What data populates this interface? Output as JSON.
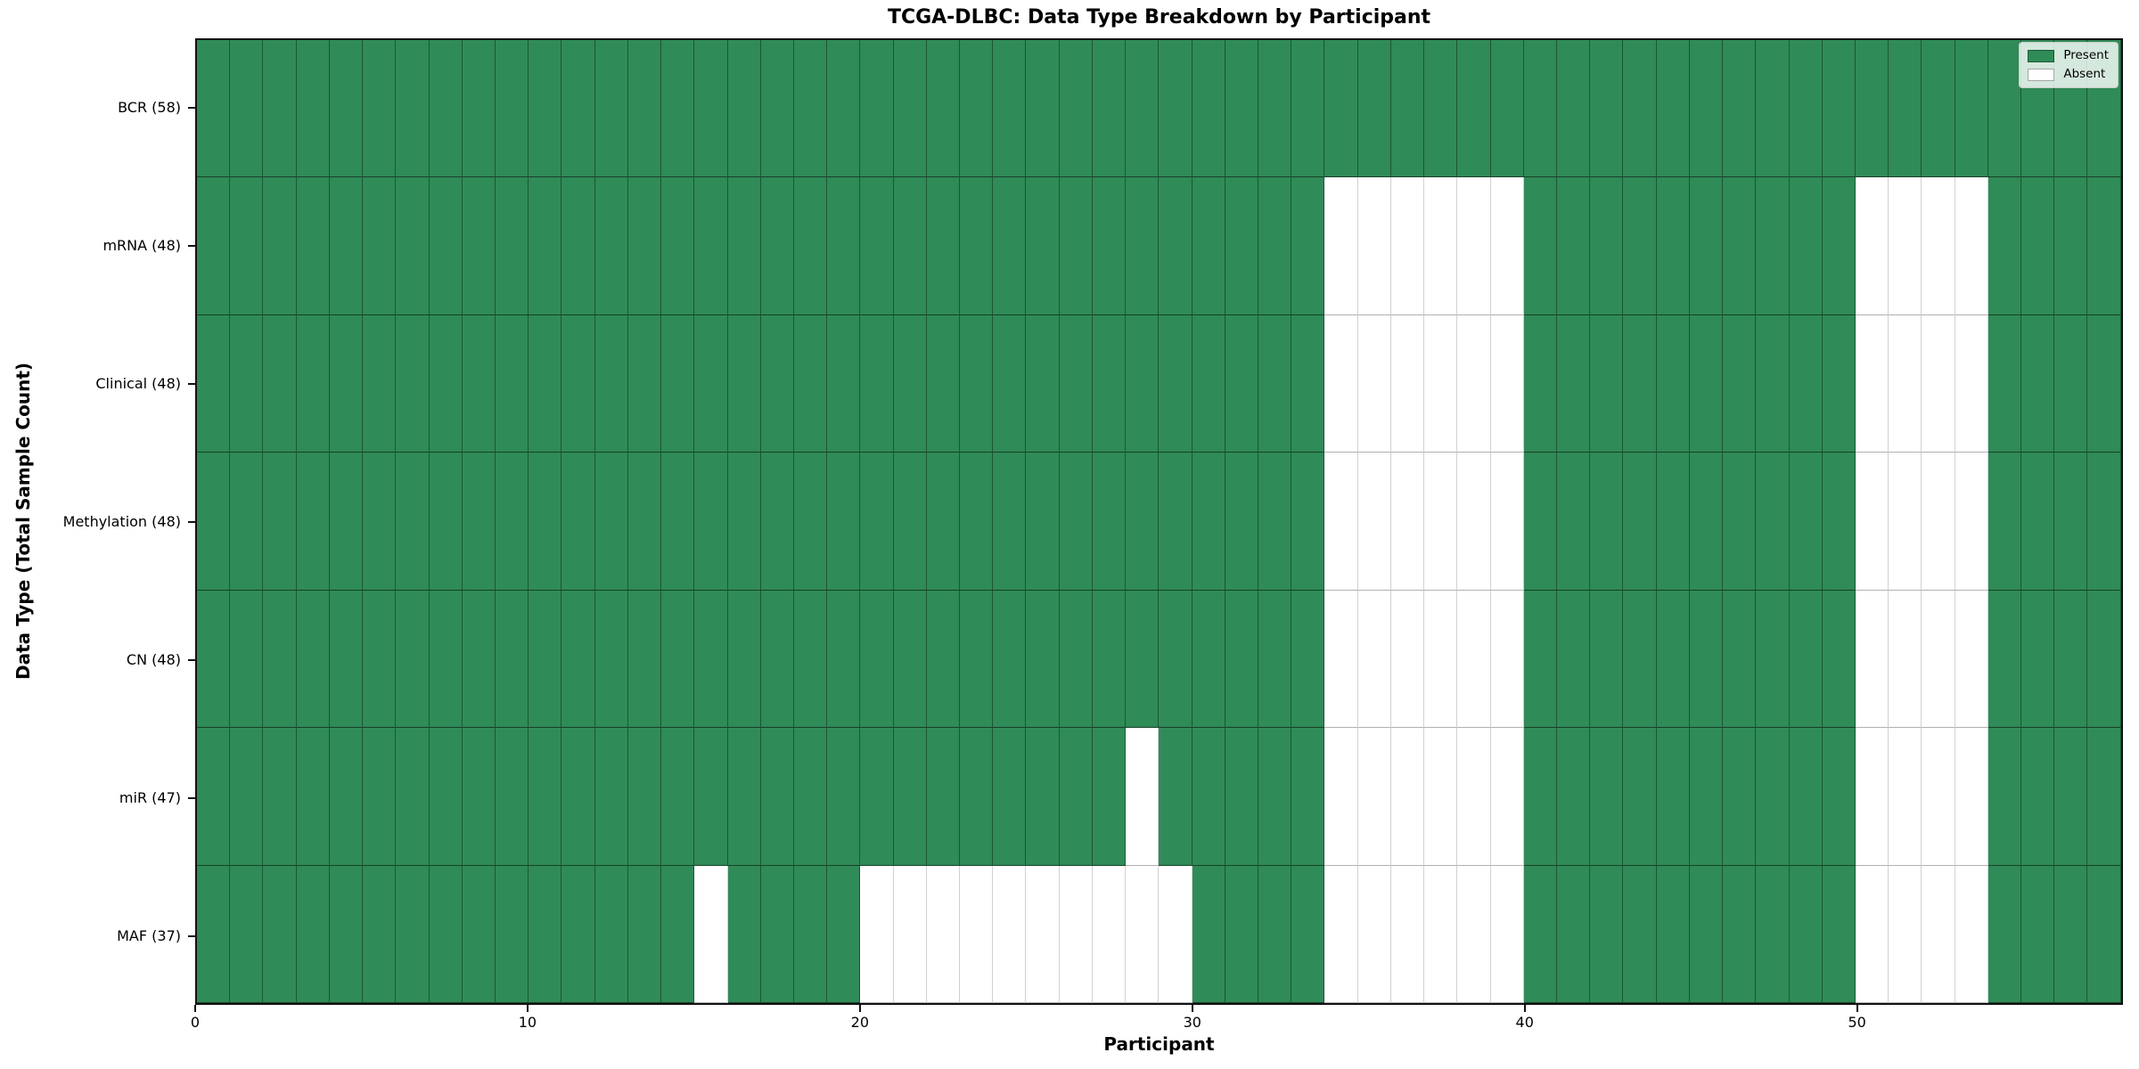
{
  "title": "TCGA-DLBC: Data Type Breakdown by Participant",
  "x_axis": {
    "label": "Participant",
    "tick_labels": [
      "0",
      "10",
      "20",
      "30",
      "40",
      "50"
    ]
  },
  "y_axis": {
    "label": "Data Type (Total Sample Count)"
  },
  "legend": {
    "items": [
      {
        "label": "Present",
        "color": "#2f8b57"
      },
      {
        "label": "Absent",
        "color": "#ffffff"
      }
    ]
  },
  "chart_data": {
    "type": "heatmap",
    "title": "TCGA-DLBC: Data Type Breakdown by Participant",
    "xlabel": "Participant",
    "ylabel": "Data Type (Total Sample Count)",
    "n_participants": 58,
    "x_range": [
      0,
      58
    ],
    "x_ticks": [
      0,
      10,
      20,
      30,
      40,
      50
    ],
    "grid": true,
    "legend_position": "upper right",
    "legend_entries": [
      "Present",
      "Absent"
    ],
    "colors": {
      "present": "#2f8b57",
      "absent": "#ffffff"
    },
    "rows": [
      {
        "label": "BCR (58)",
        "data_type": "BCR",
        "present_count": 58,
        "absent_participants": []
      },
      {
        "label": "mRNA (48)",
        "data_type": "mRNA",
        "present_count": 48,
        "absent_participants": [
          34,
          35,
          36,
          37,
          38,
          39,
          50,
          51,
          52,
          53
        ]
      },
      {
        "label": "Clinical (48)",
        "data_type": "Clinical",
        "present_count": 48,
        "absent_participants": [
          34,
          35,
          36,
          37,
          38,
          39,
          50,
          51,
          52,
          53
        ]
      },
      {
        "label": "Methylation (48)",
        "data_type": "Methylation",
        "present_count": 48,
        "absent_participants": [
          34,
          35,
          36,
          37,
          38,
          39,
          50,
          51,
          52,
          53
        ]
      },
      {
        "label": "CN (48)",
        "data_type": "CN",
        "present_count": 48,
        "absent_participants": [
          34,
          35,
          36,
          37,
          38,
          39,
          50,
          51,
          52,
          53
        ]
      },
      {
        "label": "miR (47)",
        "data_type": "miR",
        "present_count": 47,
        "absent_participants": [
          28,
          34,
          35,
          36,
          37,
          38,
          39,
          50,
          51,
          52,
          53
        ]
      },
      {
        "label": "MAF (37)",
        "data_type": "MAF",
        "present_count": 37,
        "absent_participants": [
          15,
          20,
          21,
          22,
          23,
          24,
          25,
          26,
          27,
          28,
          29,
          34,
          35,
          36,
          37,
          38,
          39,
          50,
          51,
          52,
          53
        ]
      }
    ]
  }
}
